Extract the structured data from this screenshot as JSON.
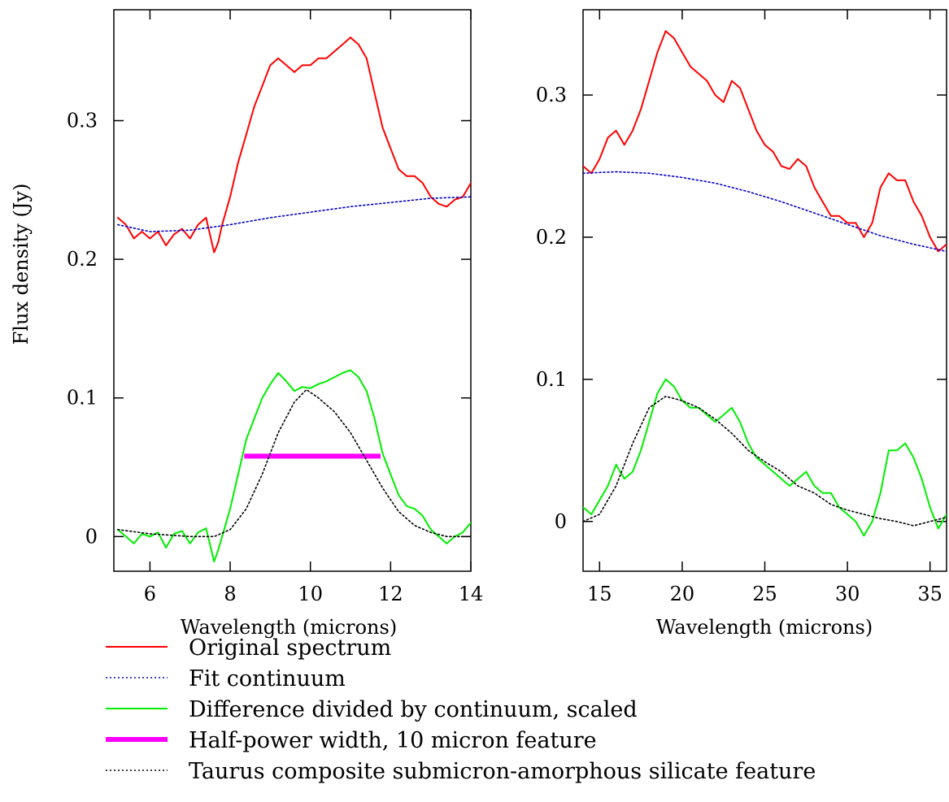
{
  "chart_data": [
    {
      "type": "line",
      "panel": "left",
      "xlabel": "Wavelength (microns)",
      "ylabel": "Flux density (Jy)",
      "xlim": [
        5.1,
        14
      ],
      "ylim": [
        -0.025,
        0.38
      ],
      "xticks": [
        6,
        8,
        10,
        12,
        14
      ],
      "yticks": [
        0,
        0.1,
        0.2,
        0.3
      ],
      "ytick_labels": [
        "0",
        "0.1",
        "0.2",
        "0.3"
      ],
      "grid": false,
      "series": [
        {
          "name": "Original spectrum",
          "color": "#ff0000",
          "style": "solid",
          "x": [
            5.2,
            5.4,
            5.6,
            5.8,
            6.0,
            6.2,
            6.4,
            6.6,
            6.8,
            7.0,
            7.2,
            7.4,
            7.6,
            7.7,
            7.8,
            8.0,
            8.2,
            8.4,
            8.6,
            8.8,
            9.0,
            9.2,
            9.4,
            9.6,
            9.8,
            10.0,
            10.2,
            10.4,
            10.6,
            10.8,
            11.0,
            11.2,
            11.4,
            11.6,
            11.8,
            12.0,
            12.2,
            12.4,
            12.6,
            12.8,
            13.0,
            13.2,
            13.4,
            13.6,
            13.8,
            14.0
          ],
          "y": [
            0.23,
            0.225,
            0.215,
            0.22,
            0.215,
            0.22,
            0.21,
            0.218,
            0.222,
            0.215,
            0.225,
            0.23,
            0.205,
            0.212,
            0.225,
            0.245,
            0.27,
            0.29,
            0.31,
            0.325,
            0.34,
            0.345,
            0.34,
            0.335,
            0.34,
            0.34,
            0.345,
            0.345,
            0.35,
            0.355,
            0.36,
            0.355,
            0.345,
            0.32,
            0.295,
            0.28,
            0.265,
            0.26,
            0.26,
            0.255,
            0.245,
            0.24,
            0.238,
            0.243,
            0.245,
            0.255
          ]
        },
        {
          "name": "Fit continuum",
          "color": "#0000cc",
          "style": "dotted",
          "x": [
            5.2,
            6.0,
            7.0,
            8.0,
            9.0,
            10.0,
            11.0,
            12.0,
            13.0,
            14.0
          ],
          "y": [
            0.225,
            0.22,
            0.221,
            0.225,
            0.23,
            0.234,
            0.238,
            0.241,
            0.244,
            0.245
          ]
        },
        {
          "name": "Difference divided by continuum, scaled",
          "color": "#00ee00",
          "style": "solid",
          "x": [
            5.2,
            5.4,
            5.6,
            5.8,
            6.0,
            6.2,
            6.4,
            6.6,
            6.8,
            7.0,
            7.2,
            7.4,
            7.6,
            7.7,
            7.8,
            8.0,
            8.2,
            8.4,
            8.6,
            8.8,
            9.0,
            9.2,
            9.4,
            9.6,
            9.8,
            10.0,
            10.2,
            10.4,
            10.6,
            10.8,
            11.0,
            11.2,
            11.4,
            11.6,
            11.8,
            12.0,
            12.2,
            12.4,
            12.6,
            12.8,
            13.0,
            13.2,
            13.4,
            13.6,
            13.8,
            14.0
          ],
          "y": [
            0.005,
            0.0,
            -0.005,
            0.002,
            0.0,
            0.003,
            -0.008,
            0.002,
            0.004,
            -0.005,
            0.003,
            0.006,
            -0.018,
            -0.01,
            0.0,
            0.02,
            0.045,
            0.07,
            0.085,
            0.1,
            0.11,
            0.118,
            0.112,
            0.105,
            0.108,
            0.107,
            0.11,
            0.112,
            0.115,
            0.118,
            0.12,
            0.115,
            0.105,
            0.085,
            0.06,
            0.045,
            0.03,
            0.022,
            0.02,
            0.015,
            0.005,
            0.0,
            -0.005,
            0.0,
            0.003,
            0.01
          ]
        },
        {
          "name": "Half-power width, 10 micron feature",
          "color": "#ff00ff",
          "style": "thick",
          "x": [
            8.35,
            11.75
          ],
          "y": [
            0.058,
            0.058
          ]
        },
        {
          "name": "Taurus composite submicron-amorphous silicate feature",
          "color": "#000000",
          "style": "dotted",
          "x": [
            5.2,
            6.0,
            7.0,
            7.6,
            8.0,
            8.4,
            8.8,
            9.2,
            9.6,
            9.9,
            10.2,
            10.6,
            11.0,
            11.4,
            11.8,
            12.2,
            12.6,
            13.0,
            13.4,
            14.0
          ],
          "y": [
            0.005,
            0.002,
            0.0,
            0.0,
            0.005,
            0.02,
            0.045,
            0.075,
            0.097,
            0.106,
            0.1,
            0.09,
            0.075,
            0.055,
            0.035,
            0.018,
            0.008,
            0.003,
            0.0,
            0.0
          ]
        }
      ]
    },
    {
      "type": "line",
      "panel": "right",
      "xlabel": "Wavelength (microns)",
      "ylabel": "",
      "xlim": [
        14,
        36
      ],
      "ylim": [
        -0.035,
        0.36
      ],
      "xticks": [
        15,
        20,
        25,
        30,
        35
      ],
      "yticks": [
        0,
        0.1,
        0.2,
        0.3
      ],
      "ytick_labels": [
        "0",
        "0.1",
        "0.2",
        "0.3"
      ],
      "grid": false,
      "series": [
        {
          "name": "Original spectrum",
          "color": "#ff0000",
          "style": "solid",
          "x": [
            14,
            14.5,
            15,
            15.5,
            16,
            16.5,
            17,
            17.5,
            18,
            18.5,
            19,
            19.5,
            20,
            20.5,
            21,
            21.5,
            22,
            22.5,
            23,
            23.5,
            24,
            24.5,
            25,
            25.5,
            26,
            26.5,
            27,
            27.5,
            28,
            28.5,
            29,
            29.5,
            30,
            30.5,
            31,
            31.5,
            32,
            32.5,
            33,
            33.5,
            34,
            34.5,
            35,
            35.5,
            36
          ],
          "y": [
            0.25,
            0.245,
            0.255,
            0.27,
            0.275,
            0.265,
            0.275,
            0.29,
            0.31,
            0.33,
            0.345,
            0.34,
            0.33,
            0.32,
            0.315,
            0.31,
            0.3,
            0.295,
            0.31,
            0.305,
            0.29,
            0.275,
            0.265,
            0.26,
            0.25,
            0.248,
            0.255,
            0.25,
            0.235,
            0.225,
            0.215,
            0.215,
            0.21,
            0.21,
            0.2,
            0.21,
            0.235,
            0.245,
            0.24,
            0.24,
            0.225,
            0.215,
            0.2,
            0.19,
            0.195
          ]
        },
        {
          "name": "Fit continuum",
          "color": "#0000cc",
          "style": "dotted",
          "x": [
            14,
            16,
            18,
            20,
            22,
            24,
            26,
            28,
            30,
            32,
            34,
            36
          ],
          "y": [
            0.245,
            0.246,
            0.245,
            0.242,
            0.238,
            0.232,
            0.225,
            0.217,
            0.209,
            0.201,
            0.195,
            0.19
          ]
        },
        {
          "name": "Difference divided by continuum, scaled",
          "color": "#00ee00",
          "style": "solid",
          "x": [
            14,
            14.5,
            15,
            15.5,
            16,
            16.5,
            17,
            17.5,
            18,
            18.5,
            19,
            19.5,
            20,
            20.5,
            21,
            21.5,
            22,
            22.5,
            23,
            23.5,
            24,
            24.5,
            25,
            25.5,
            26,
            26.5,
            27,
            27.5,
            28,
            28.5,
            29,
            29.5,
            30,
            30.5,
            31,
            31.5,
            32,
            32.5,
            33,
            33.5,
            34,
            34.5,
            35,
            35.5,
            36
          ],
          "y": [
            0.01,
            0.005,
            0.015,
            0.025,
            0.04,
            0.03,
            0.035,
            0.05,
            0.07,
            0.09,
            0.1,
            0.095,
            0.085,
            0.08,
            0.08,
            0.075,
            0.07,
            0.075,
            0.08,
            0.07,
            0.055,
            0.045,
            0.04,
            0.035,
            0.03,
            0.025,
            0.03,
            0.035,
            0.025,
            0.02,
            0.02,
            0.01,
            0.005,
            0.0,
            -0.01,
            0.0,
            0.02,
            0.05,
            0.05,
            0.055,
            0.045,
            0.03,
            0.01,
            -0.005,
            0.005
          ]
        },
        {
          "name": "Taurus composite submicron-amorphous silicate feature",
          "color": "#000000",
          "style": "dotted",
          "x": [
            14,
            15,
            16,
            17,
            18,
            19,
            20,
            21,
            22,
            23,
            24,
            25,
            26,
            27,
            28,
            29,
            30,
            31,
            32,
            33,
            34,
            35,
            36
          ],
          "y": [
            0.0,
            0.005,
            0.025,
            0.055,
            0.08,
            0.088,
            0.085,
            0.08,
            0.072,
            0.062,
            0.05,
            0.042,
            0.035,
            0.025,
            0.02,
            0.012,
            0.008,
            0.005,
            0.002,
            0.0,
            -0.003,
            0.0,
            0.003
          ]
        }
      ]
    }
  ],
  "legend": {
    "placement": "bottom",
    "items": [
      {
        "label": "Original spectrum",
        "color": "#ff0000",
        "style": "solid"
      },
      {
        "label": "Fit continuum",
        "color": "#0000cc",
        "style": "dotted"
      },
      {
        "label": "Difference divided by continuum, scaled",
        "color": "#00ee00",
        "style": "solid"
      },
      {
        "label": "Half-power width, 10 micron feature",
        "color": "#ff00ff",
        "style": "thick"
      },
      {
        "label": "Taurus composite submicron-amorphous silicate feature",
        "color": "#000000",
        "style": "dotted"
      }
    ]
  }
}
